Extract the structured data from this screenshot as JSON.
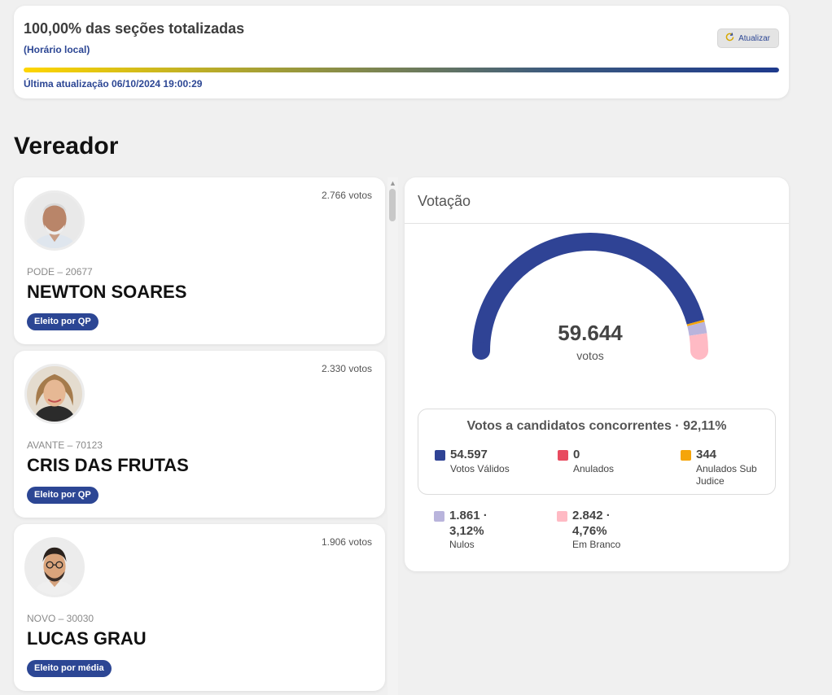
{
  "status": {
    "title": "100,00% das seções totalizadas",
    "local_time": "(Horário local)",
    "refresh_label": "Atualizar",
    "progress": 1.0,
    "last_update": "Última atualização 06/10/2024 19:00:29"
  },
  "section": {
    "title": "Vereador"
  },
  "candidates": [
    {
      "votes": "2.766 votos",
      "party": "PODE – 20677",
      "name": "NEWTON SOARES",
      "badge": "Eleito por QP"
    },
    {
      "votes": "2.330 votos",
      "party": "AVANTE – 70123",
      "name": "CRIS DAS FRUTAS",
      "badge": "Eleito por QP"
    },
    {
      "votes": "1.906 votos",
      "party": "NOVO – 30030",
      "name": "LUCAS GRAU",
      "badge": "Eleito por média"
    }
  ],
  "votacao": {
    "title": "Votação",
    "total": "59.644",
    "total_unit": "votos",
    "summary_title": "Votos a candidatos concorrentes · 92,11%",
    "gauge_segments": [
      {
        "name": "Votos Válidos",
        "value": 54597,
        "color": "#2f4395"
      },
      {
        "name": "Anulados",
        "value": 0,
        "color": "#e84a5f"
      },
      {
        "name": "Anulados Sub Judice",
        "value": 344,
        "color": "#f5a50a"
      },
      {
        "name": "Nulos",
        "value": 1861,
        "color": "#b9b4dc"
      },
      {
        "name": "Em Branco",
        "value": 2842,
        "color": "#ffbac4"
      }
    ],
    "legend": [
      {
        "value": "54.597",
        "label": "Votos Válidos",
        "color": "#2f4395"
      },
      {
        "value": "0",
        "label": "Anulados",
        "color": "#e84a5f"
      },
      {
        "value": "344",
        "label": "Anulados Sub Judice",
        "color": "#f5a50a"
      },
      {
        "value": "1.861 · 3,12%",
        "label": "Nulos",
        "color": "#b9b4dc"
      },
      {
        "value": "2.842 · 4,76%",
        "label": "Em Branco",
        "color": "#ffbac4"
      }
    ]
  }
}
